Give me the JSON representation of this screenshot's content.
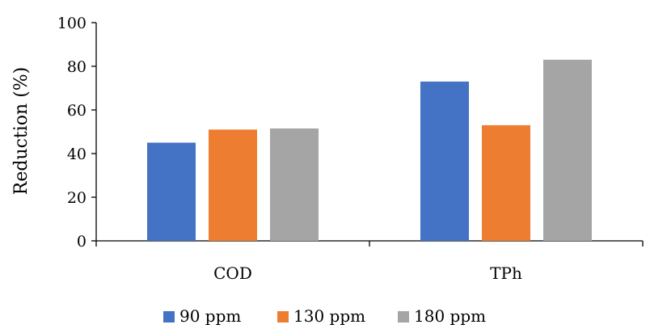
{
  "chart_data": {
    "type": "bar",
    "categories": [
      "COD",
      "TPh"
    ],
    "series": [
      {
        "name": "90 ppm",
        "values": [
          45,
          73
        ],
        "color": "#4472C4"
      },
      {
        "name": "130 ppm",
        "values": [
          51,
          53
        ],
        "color": "#ED7D31"
      },
      {
        "name": "180 ppm",
        "values": [
          51.5,
          83
        ],
        "color": "#A5A5A5"
      }
    ],
    "title": "",
    "xlabel": "",
    "ylabel": "Reduction (%)",
    "ylim": [
      0,
      100
    ],
    "yticks": [
      0,
      20,
      40,
      60,
      80,
      100
    ],
    "grid": false,
    "legend_position": "bottom"
  }
}
